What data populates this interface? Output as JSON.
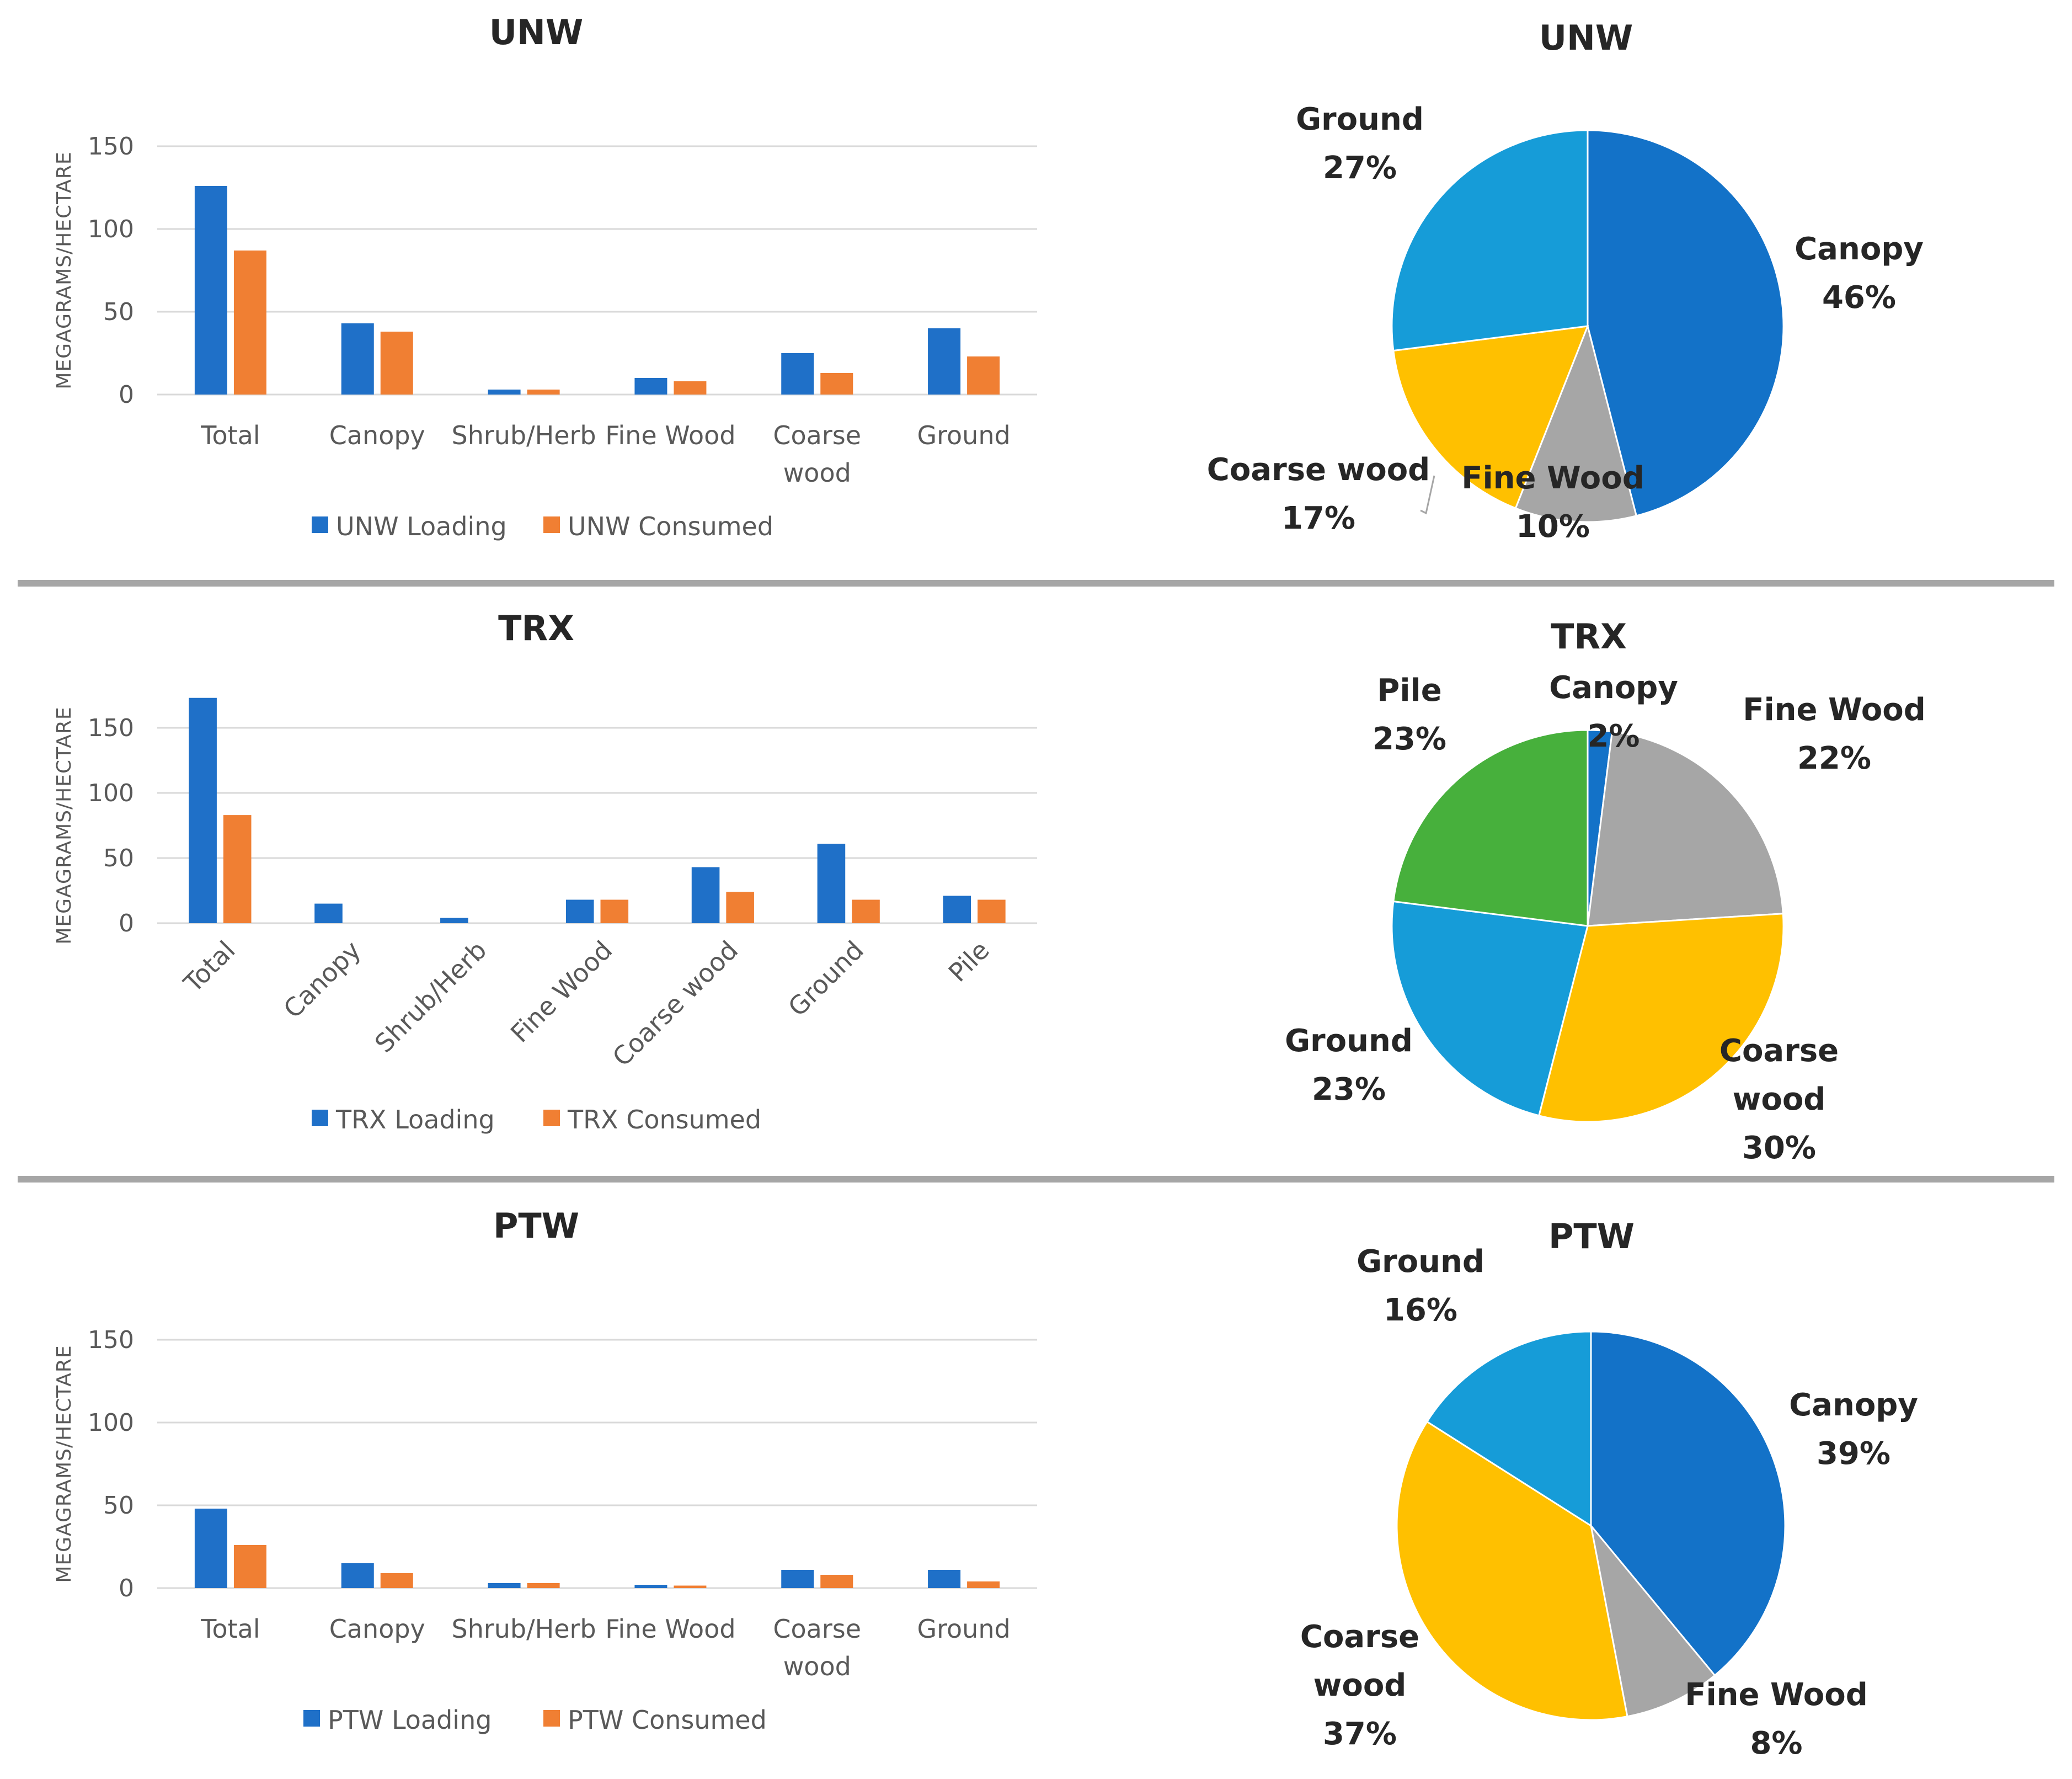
{
  "colors": {
    "loading": "#1f70c8",
    "consumed": "#f07f33",
    "canopy": "#1372c8",
    "fine_wood": "#a6a6a6",
    "coarse_wood": "#ffc000",
    "ground": "#169cd8",
    "pile": "#47b03c"
  },
  "chart_data": [
    {
      "type": "bar",
      "title": "UNW",
      "ylabel": "MEGAGRAMS/HECTARE",
      "xlabel": "",
      "ylim": [
        0,
        150
      ],
      "yticks": [
        0,
        50,
        100,
        150
      ],
      "grid": true,
      "rotated_labels": false,
      "categories": [
        "Total",
        "Canopy",
        "Shrub/Herb",
        "Fine Wood",
        "Coarse wood",
        "Ground"
      ],
      "series": [
        {
          "name": "UNW Loading",
          "values": [
            126,
            43,
            3,
            10,
            25,
            40
          ]
        },
        {
          "name": "UNW Consumed",
          "values": [
            87,
            38,
            3,
            8,
            13,
            23
          ]
        }
      ],
      "legend_position": "bottom"
    },
    {
      "type": "pie",
      "title": "UNW",
      "slices": [
        {
          "label": "Canopy",
          "value": 46,
          "pct": "46%",
          "color_key": "canopy"
        },
        {
          "label": "Fine Wood",
          "value": 10,
          "pct": "10%",
          "color_key": "fine_wood"
        },
        {
          "label": "Coarse wood",
          "value": 17,
          "pct": "17%",
          "color_key": "coarse_wood"
        },
        {
          "label": "Ground",
          "value": 27,
          "pct": "27%",
          "color_key": "ground"
        }
      ]
    },
    {
      "type": "bar",
      "title": "TRX",
      "ylabel": "MEGAGRAMS/HECTARE",
      "xlabel": "",
      "ylim": [
        0,
        180
      ],
      "yticks": [
        0,
        50,
        100,
        150
      ],
      "grid": true,
      "rotated_labels": true,
      "categories": [
        "Total",
        "Canopy",
        "Shrub/Herb",
        "Fine Wood",
        "Coarse wood",
        "Ground",
        "Pile"
      ],
      "series": [
        {
          "name": "TRX Loading",
          "values": [
            173,
            15,
            4,
            18,
            43,
            61,
            21
          ]
        },
        {
          "name": "TRX Consumed",
          "values": [
            83,
            0,
            0,
            18,
            24,
            18,
            18
          ]
        }
      ],
      "legend_position": "bottom"
    },
    {
      "type": "pie",
      "title": "TRX",
      "slices": [
        {
          "label": "Canopy",
          "value": 2,
          "pct": "2%",
          "color_key": "canopy"
        },
        {
          "label": "Fine Wood",
          "value": 22,
          "pct": "22%",
          "color_key": "fine_wood"
        },
        {
          "label": "Coarse wood",
          "value": 30,
          "pct": "30%",
          "color_key": "coarse_wood"
        },
        {
          "label": "Ground",
          "value": 23,
          "pct": "23%",
          "color_key": "ground"
        },
        {
          "label": "Pile",
          "value": 23,
          "pct": "23%",
          "color_key": "pile"
        }
      ]
    },
    {
      "type": "bar",
      "title": "PTW",
      "ylabel": "MEGAGRAMS/HECTARE",
      "xlabel": "",
      "ylim": [
        0,
        150
      ],
      "yticks": [
        0,
        50,
        100,
        150
      ],
      "grid": true,
      "rotated_labels": false,
      "categories": [
        "Total",
        "Canopy",
        "Shrub/Herb",
        "Fine Wood",
        "Coarse wood",
        "Ground"
      ],
      "series": [
        {
          "name": "PTW Loading",
          "values": [
            48,
            15,
            3,
            2,
            11,
            11
          ]
        },
        {
          "name": "PTW Consumed",
          "values": [
            26,
            9,
            3,
            1.5,
            8,
            4
          ]
        }
      ],
      "legend_position": "bottom"
    },
    {
      "type": "pie",
      "title": "PTW",
      "slices": [
        {
          "label": "Canopy",
          "value": 39,
          "pct": "39%",
          "color_key": "canopy"
        },
        {
          "label": "Fine Wood",
          "value": 8,
          "pct": "8%",
          "color_key": "fine_wood"
        },
        {
          "label": "Coarse wood",
          "value": 37,
          "pct": "37%",
          "color_key": "coarse_wood"
        },
        {
          "label": "Ground",
          "value": 16,
          "pct": "16%",
          "color_key": "ground"
        }
      ]
    }
  ]
}
